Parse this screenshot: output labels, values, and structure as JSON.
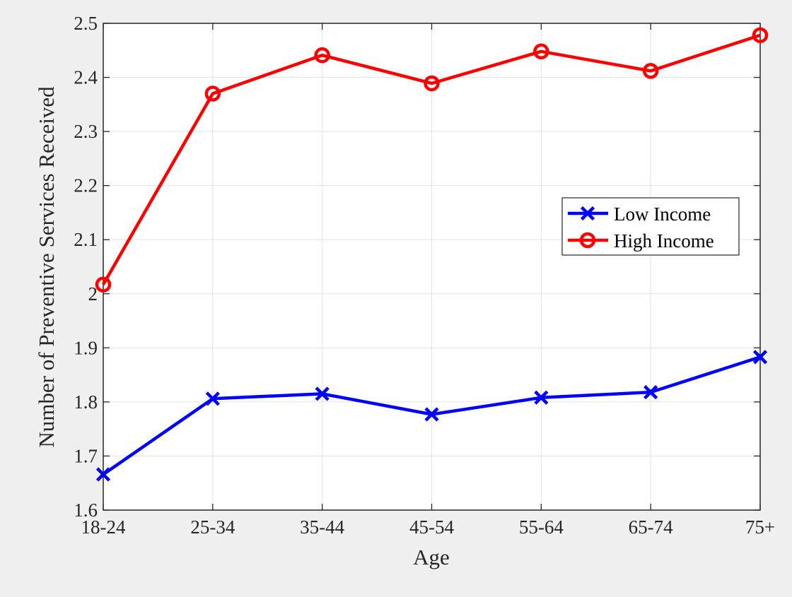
{
  "chart_data": {
    "type": "line",
    "categories": [
      "18-24",
      "25-34",
      "35-44",
      "45-54",
      "55-64",
      "65-74",
      "75+"
    ],
    "xlabel": "Age",
    "ylabel": "Number of Preventive Services Received",
    "ylim": [
      1.6,
      2.5
    ],
    "yticks": [
      1.6,
      1.7,
      1.8,
      1.9,
      2.0,
      2.1,
      2.2,
      2.3,
      2.4,
      2.5
    ],
    "ytick_labels": [
      "1.6",
      "1.7",
      "1.8",
      "1.9",
      "2",
      "2.1",
      "2.2",
      "2.3",
      "2.4",
      "2.5"
    ],
    "grid": true,
    "legend_position": "right",
    "series": [
      {
        "name": "Low Income",
        "color": "#0000ff",
        "marker": "x",
        "values": [
          1.666,
          1.806,
          1.815,
          1.777,
          1.808,
          1.818,
          1.883
        ]
      },
      {
        "name": "High Income",
        "color": "#ff0000",
        "marker": "o",
        "values": [
          2.017,
          2.37,
          2.441,
          2.389,
          2.448,
          2.412,
          2.478
        ]
      }
    ]
  }
}
